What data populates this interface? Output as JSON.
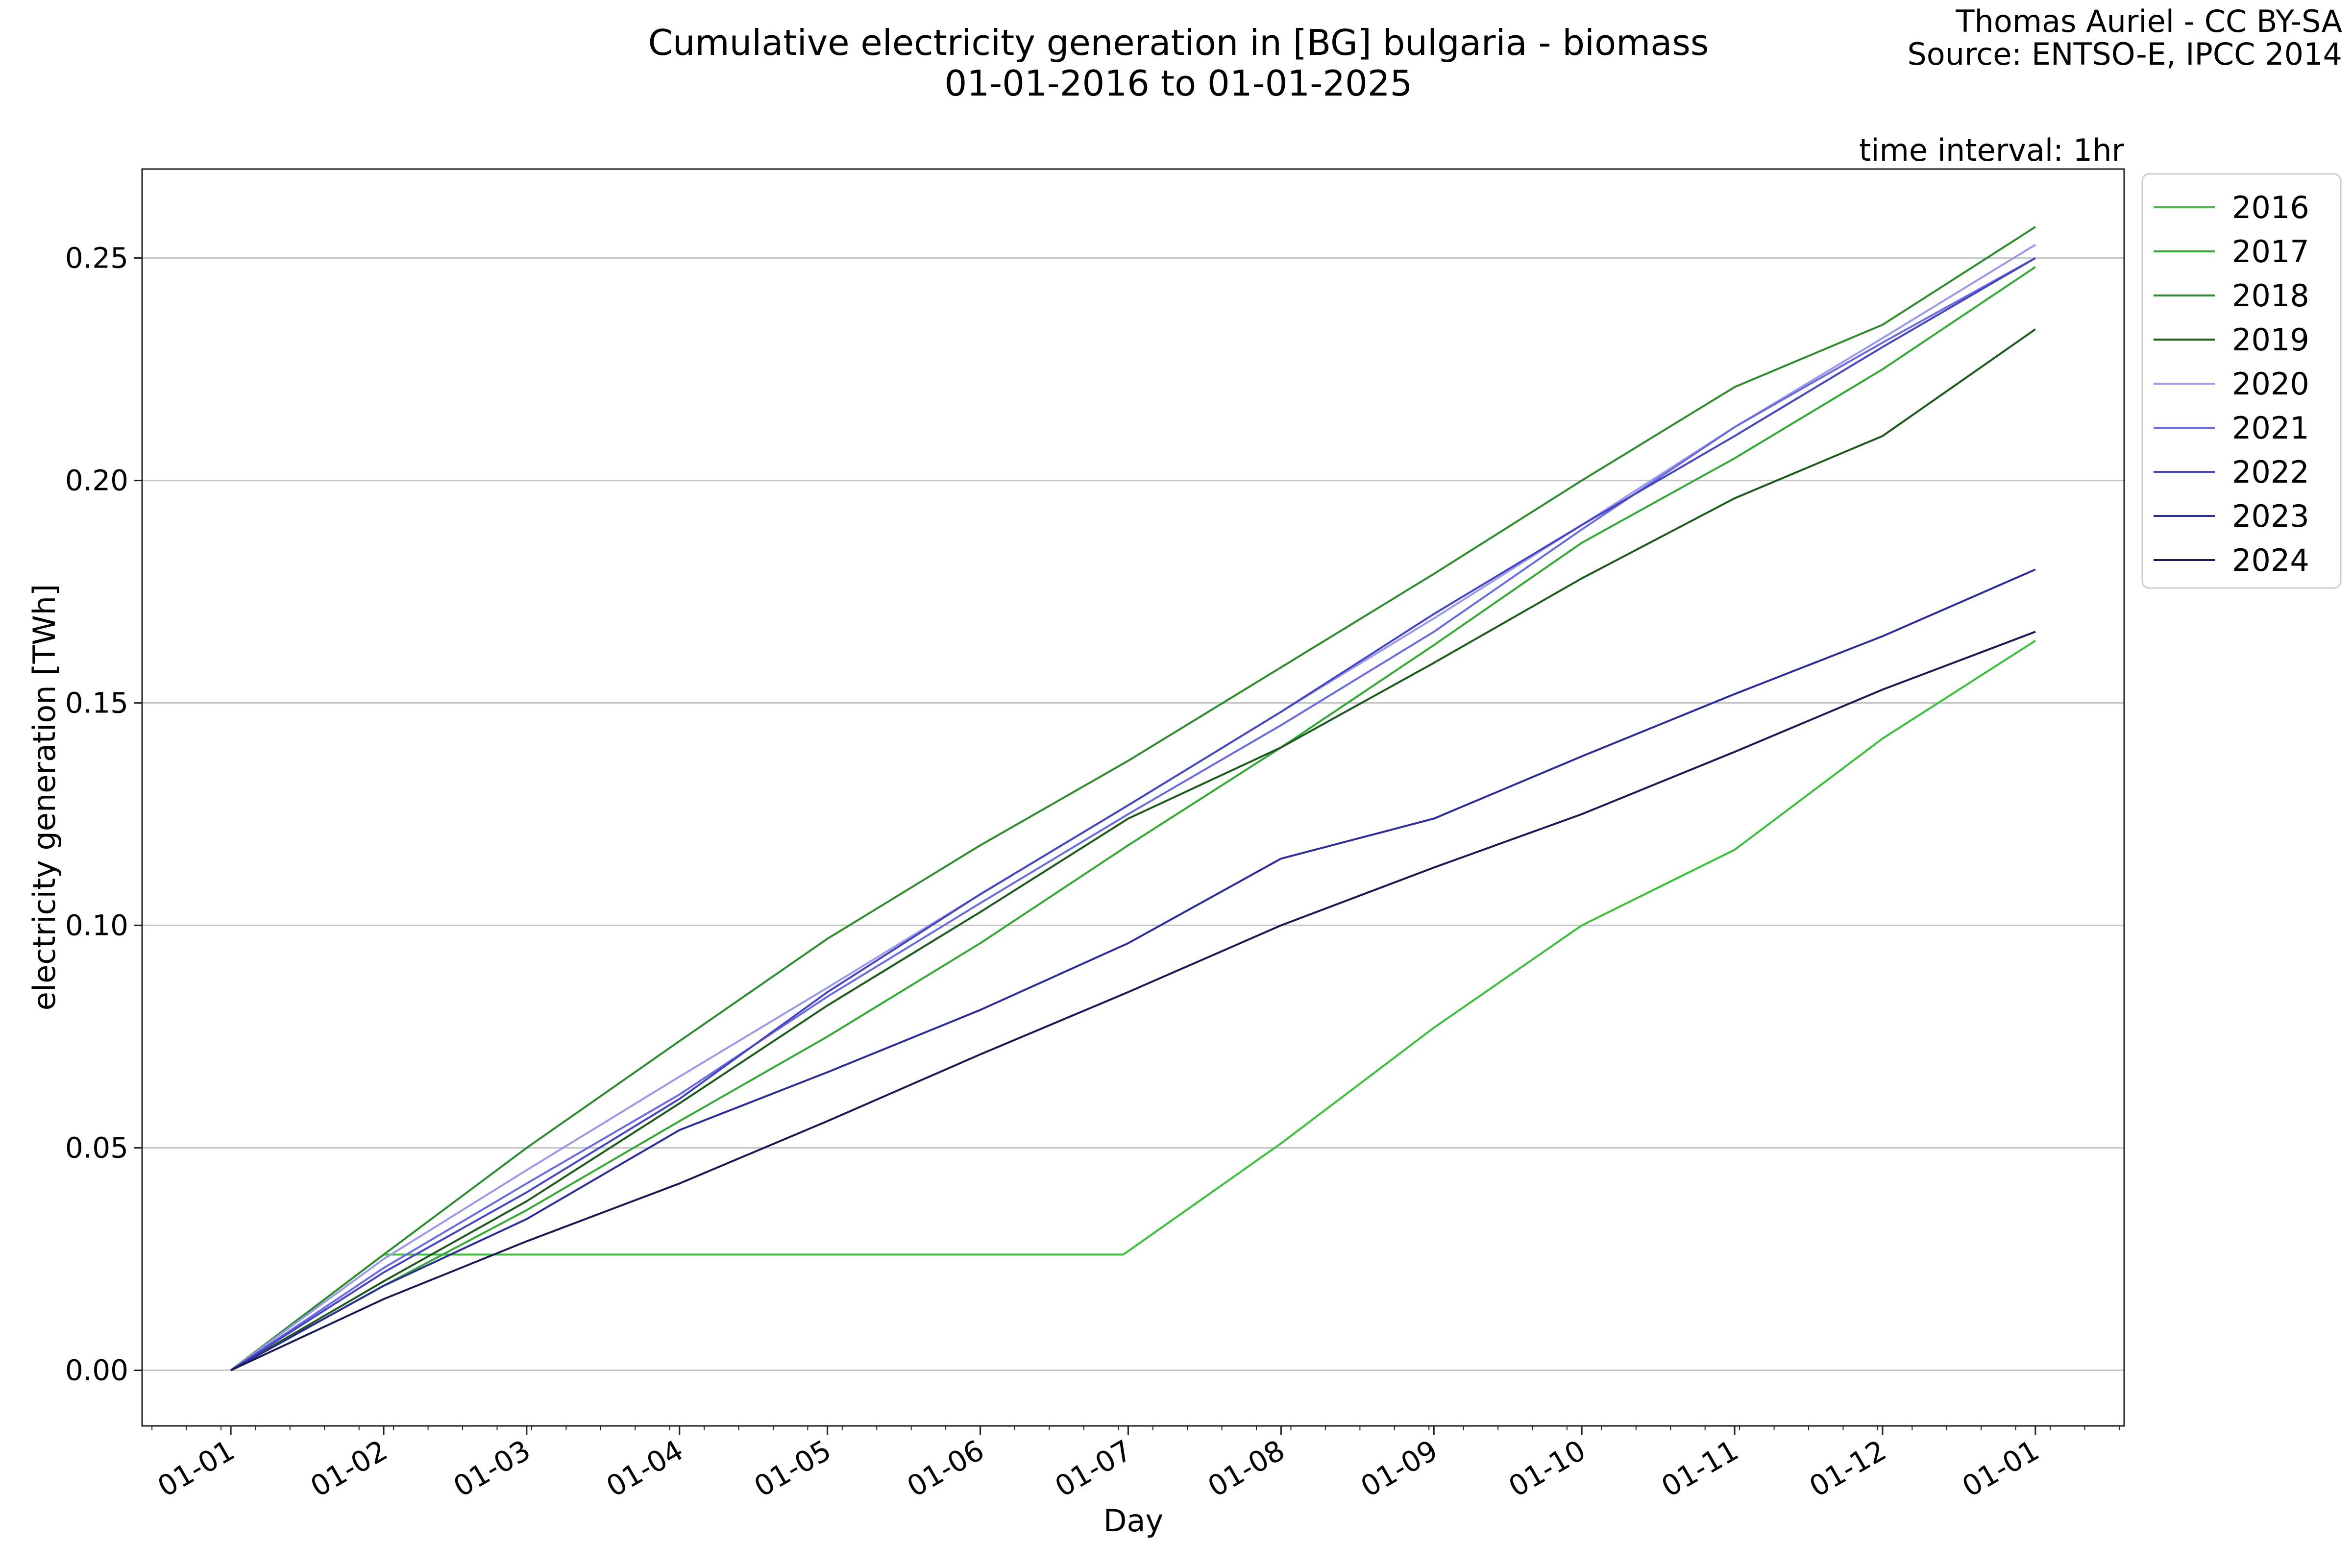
{
  "chart_data": {
    "type": "line",
    "title": "Cumulative electricity generation in [BG] bulgaria - biomass",
    "subtitle": "01-01-2016 to 01-01-2025",
    "credit_line1": "Thomas Auriel - CC BY-SA",
    "credit_line2": "Source: ENTSO-E, IPCC 2014",
    "interval_note": "time interval: 1hr",
    "xlabel": "Day",
    "ylabel": "electricity generation [TWh]",
    "x_ticks": [
      "01-01",
      "01-02",
      "01-03",
      "01-04",
      "01-05",
      "01-06",
      "01-07",
      "01-08",
      "01-09",
      "01-10",
      "01-11",
      "01-12",
      "01-01"
    ],
    "x_tick_days": [
      0,
      31,
      60,
      91,
      121,
      152,
      182,
      213,
      244,
      274,
      305,
      335,
      366
    ],
    "xlim": [
      -18,
      384
    ],
    "y_ticks": [
      "0.00",
      "0.05",
      "0.10",
      "0.15",
      "0.20",
      "0.25"
    ],
    "y_tick_values": [
      0,
      0.05,
      0.1,
      0.15,
      0.2,
      0.25
    ],
    "ylim": [
      -0.0125,
      0.27
    ],
    "grid": "horizontal",
    "legend_position": "outside-top-right",
    "series": [
      {
        "name": "2016",
        "color": "#3cbf3c",
        "x": [
          0,
          31,
          60,
          91,
          121,
          152,
          181,
          213,
          244,
          274,
          305,
          335,
          366
        ],
        "y": [
          0,
          0.026,
          0.026,
          0.026,
          0.026,
          0.026,
          0.026,
          0.051,
          0.077,
          0.1,
          0.117,
          0.142,
          0.164
        ]
      },
      {
        "name": "2017",
        "color": "#35a835",
        "x": [
          0,
          31,
          60,
          91,
          121,
          152,
          182,
          213,
          244,
          274,
          305,
          335,
          366
        ],
        "y": [
          0,
          0.019,
          0.036,
          0.056,
          0.075,
          0.096,
          0.118,
          0.14,
          0.163,
          0.186,
          0.205,
          0.225,
          0.248
        ]
      },
      {
        "name": "2018",
        "color": "#2e8b2e",
        "x": [
          0,
          31,
          60,
          91,
          121,
          152,
          182,
          213,
          244,
          274,
          305,
          335,
          366
        ],
        "y": [
          0,
          0.026,
          0.05,
          0.074,
          0.097,
          0.118,
          0.137,
          0.158,
          0.179,
          0.2,
          0.221,
          0.235,
          0.257
        ]
      },
      {
        "name": "2019",
        "color": "#1e5a1e",
        "x": [
          0,
          31,
          60,
          91,
          121,
          152,
          182,
          213,
          244,
          274,
          305,
          335,
          366
        ],
        "y": [
          0,
          0.02,
          0.038,
          0.06,
          0.082,
          0.103,
          0.124,
          0.14,
          0.159,
          0.178,
          0.196,
          0.21,
          0.234
        ]
      },
      {
        "name": "2020",
        "color": "#9a9ae8",
        "x": [
          0,
          31,
          60,
          91,
          121,
          152,
          182,
          213,
          244,
          274,
          305,
          335,
          366
        ],
        "y": [
          0,
          0.025,
          0.045,
          0.066,
          0.086,
          0.107,
          0.127,
          0.148,
          0.169,
          0.19,
          0.212,
          0.232,
          0.253
        ]
      },
      {
        "name": "2021",
        "color": "#6b6be0",
        "x": [
          0,
          31,
          60,
          91,
          121,
          152,
          182,
          213,
          244,
          274,
          305,
          335,
          366
        ],
        "y": [
          0,
          0.023,
          0.042,
          0.062,
          0.084,
          0.105,
          0.125,
          0.145,
          0.166,
          0.189,
          0.212,
          0.231,
          0.25
        ]
      },
      {
        "name": "2022",
        "color": "#4646c2",
        "x": [
          0,
          31,
          60,
          91,
          121,
          152,
          182,
          213,
          244,
          274,
          305,
          335,
          366
        ],
        "y": [
          0,
          0.022,
          0.04,
          0.061,
          0.085,
          0.107,
          0.127,
          0.148,
          0.17,
          0.19,
          0.21,
          0.23,
          0.25
        ]
      },
      {
        "name": "2023",
        "color": "#2d2d9a",
        "x": [
          0,
          31,
          60,
          91,
          121,
          152,
          182,
          213,
          244,
          274,
          305,
          335,
          366
        ],
        "y": [
          0,
          0.019,
          0.034,
          0.054,
          0.067,
          0.081,
          0.096,
          0.115,
          0.124,
          0.138,
          0.152,
          0.165,
          0.18
        ]
      },
      {
        "name": "2024",
        "color": "#1a1a55",
        "x": [
          0,
          31,
          60,
          91,
          121,
          152,
          182,
          213,
          244,
          274,
          305,
          335,
          366
        ],
        "y": [
          0,
          0.016,
          0.029,
          0.042,
          0.056,
          0.071,
          0.085,
          0.1,
          0.113,
          0.125,
          0.139,
          0.153,
          0.166
        ]
      }
    ]
  }
}
